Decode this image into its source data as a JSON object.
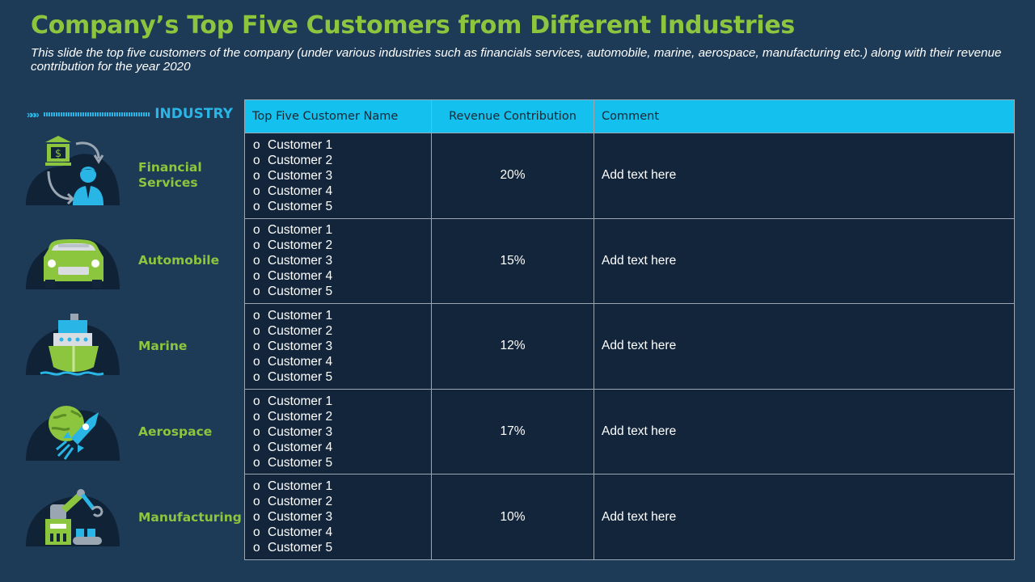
{
  "title": "Company’s Top Five Customers from Different Industries",
  "subtitle": "This slide the top five customers of the company (under various industries such as financials services, automobile, marine, aerospace, manufacturing etc.) along with their revenue contribution for the year 2020",
  "industry_header": {
    "chevrons": "»»»",
    "label": "INDUSTRY"
  },
  "industries": [
    {
      "name_line1": "Financial",
      "name_line2": "Services",
      "icon": "bank-banker-icon"
    },
    {
      "name_line1": "Automobile",
      "name_line2": "",
      "icon": "car-icon"
    },
    {
      "name_line1": "Marine",
      "name_line2": "",
      "icon": "ship-icon"
    },
    {
      "name_line1": "Aerospace",
      "name_line2": "",
      "icon": "rocket-planet-icon"
    },
    {
      "name_line1": "Manufacturing",
      "name_line2": "",
      "icon": "robot-arm-icon"
    }
  ],
  "table": {
    "headers": [
      "Top Five Customer Name",
      "Revenue Contribution",
      "Comment"
    ],
    "bullet": "o",
    "rows": [
      {
        "customers": [
          "Customer 1",
          "Customer 2",
          "Customer 3",
          "Customer 4",
          "Customer 5"
        ],
        "revenue": "20%",
        "comment": "Add text here"
      },
      {
        "customers": [
          "Customer 1",
          "Customer 2",
          "Customer 3",
          "Customer 4",
          "Customer 5"
        ],
        "revenue": "15%",
        "comment": "Add text here"
      },
      {
        "customers": [
          "Customer 1",
          "Customer 2",
          "Customer 3",
          "Customer 4",
          "Customer 5"
        ],
        "revenue": "12%",
        "comment": "Add text here"
      },
      {
        "customers": [
          "Customer 1",
          "Customer 2",
          "Customer 3",
          "Customer 4",
          "Customer 5"
        ],
        "revenue": "17%",
        "comment": "Add text here"
      },
      {
        "customers": [
          "Customer 1",
          "Customer 2",
          "Customer 3",
          "Customer 4",
          "Customer 5"
        ],
        "revenue": "10%",
        "comment": "Add text here"
      }
    ]
  },
  "colors": {
    "background": "#1d3a57",
    "title": "#8cc63f",
    "accent": "#13c0ee",
    "cell": "#12253a"
  }
}
